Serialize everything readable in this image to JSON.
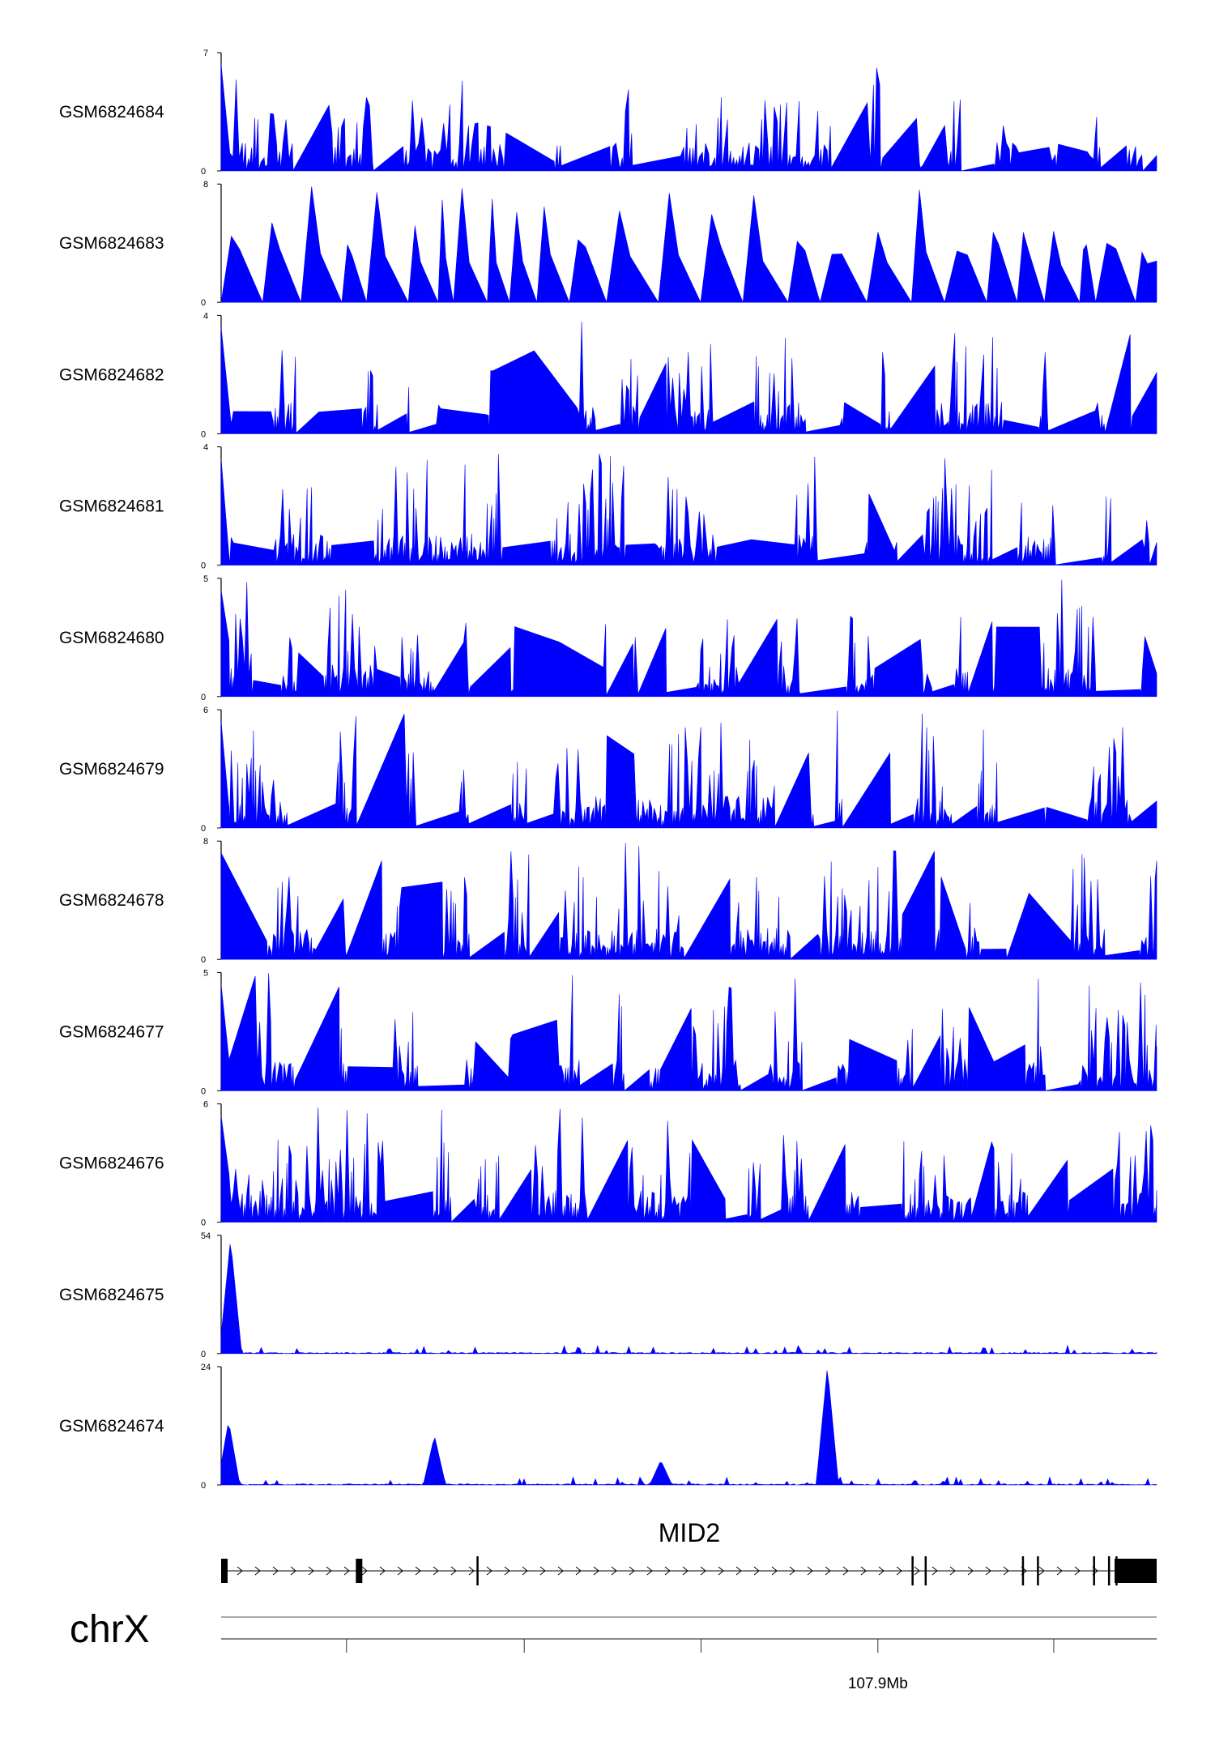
{
  "chart_data": {
    "type": "area",
    "color": "#0000ff",
    "tracks": [
      {
        "label": "GSM6824684",
        "ymax": "7",
        "ymin": "0",
        "max": 7,
        "profile": "sparse",
        "peaks": []
      },
      {
        "label": "GSM6824683",
        "ymax": "8",
        "ymin": "0",
        "max": 8,
        "profile": "spiky",
        "peaks": []
      },
      {
        "label": "GSM6824682",
        "ymax": "4",
        "ymin": "0",
        "max": 4,
        "profile": "dense",
        "peaks": []
      },
      {
        "label": "GSM6824681",
        "ymax": "4",
        "ymin": "0",
        "max": 4,
        "profile": "dense",
        "peaks": []
      },
      {
        "label": "GSM6824680",
        "ymax": "5",
        "ymin": "0",
        "max": 5,
        "profile": "dense",
        "peaks": []
      },
      {
        "label": "GSM6824679",
        "ymax": "6",
        "ymin": "0",
        "max": 6,
        "profile": "dense",
        "peaks": []
      },
      {
        "label": "GSM6824678",
        "ymax": "8",
        "ymin": "0",
        "max": 8,
        "profile": "dense",
        "peaks": []
      },
      {
        "label": "GSM6824677",
        "ymax": "5",
        "ymin": "0",
        "max": 5,
        "profile": "dense",
        "peaks": []
      },
      {
        "label": "GSM6824676",
        "ymax": "6",
        "ymin": "0",
        "max": 6,
        "profile": "dense",
        "peaks": []
      },
      {
        "label": "GSM6824675",
        "ymax": "54",
        "ymin": "0",
        "max": 54,
        "profile": "flat",
        "peaks": [
          {
            "x": 0.01,
            "value": 52
          }
        ]
      },
      {
        "label": "GSM6824674",
        "ymax": "24",
        "ymin": "0",
        "max": 24,
        "profile": "flat",
        "peaks": [
          {
            "x": 0.008,
            "value": 13
          },
          {
            "x": 0.228,
            "value": 10
          },
          {
            "x": 0.47,
            "value": 5
          },
          {
            "x": 0.648,
            "value": 24
          }
        ]
      }
    ],
    "gene": {
      "name": "MID2",
      "exons": [
        0.0,
        0.144,
        0.273,
        0.738,
        0.752,
        0.856,
        0.872,
        0.932,
        0.948,
        0.956
      ],
      "utr_end": [
        0.955,
        1.0
      ]
    },
    "chromosome": "chrX",
    "axis_ticks": [
      0.134,
      0.324,
      0.513,
      0.702,
      0.89
    ],
    "labeled_tick": {
      "x": 0.702,
      "label": "107.9Mb"
    }
  }
}
